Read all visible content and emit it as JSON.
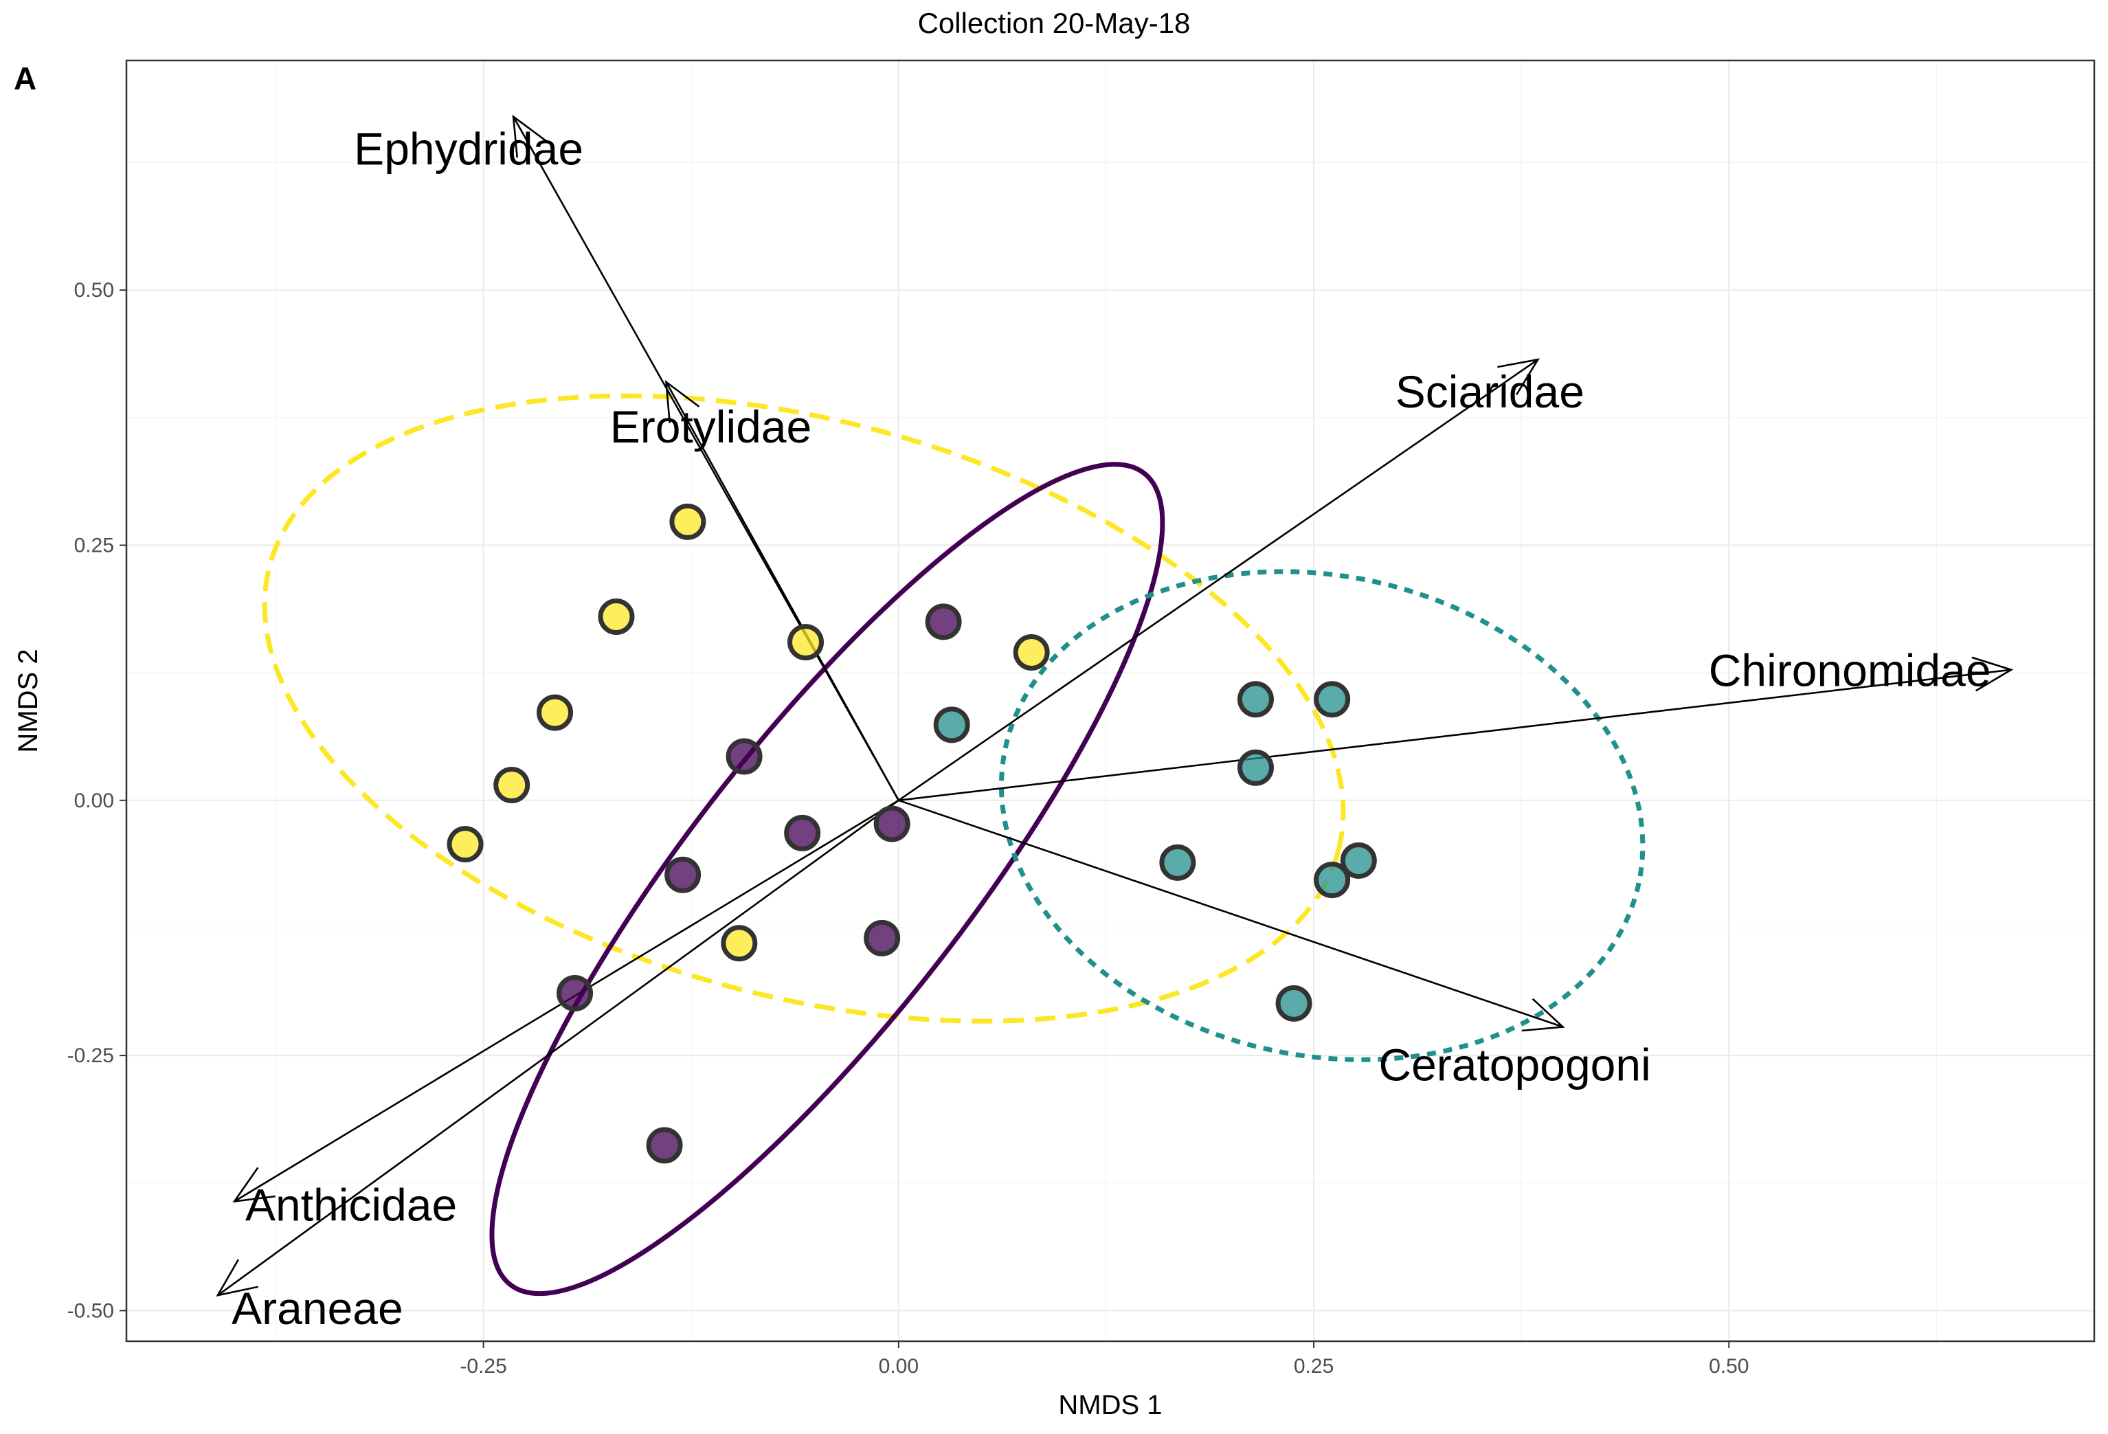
{
  "chart_data": {
    "type": "scatter",
    "title": "Collection 20-May-18",
    "panel_tag": "A",
    "xlabel": "NMDS 1",
    "ylabel": "NMDS 2",
    "xlim": [
      -0.465,
      0.72
    ],
    "ylim": [
      -0.53,
      0.725
    ],
    "xticks": [
      -0.25,
      0.0,
      0.25,
      0.5
    ],
    "xtick_labels": [
      "-0.25",
      "0.00",
      "0.25",
      "0.50"
    ],
    "yticks": [
      -0.5,
      -0.25,
      0.0,
      0.25,
      0.5
    ],
    "ytick_labels": [
      "-0.50",
      "-0.25",
      "0.00",
      "0.25",
      "0.50"
    ],
    "grid": true,
    "legend": "none",
    "groups": [
      {
        "color": "#fde725",
        "points": [
          [
            -0.127,
            0.273
          ],
          [
            -0.17,
            0.18
          ],
          [
            -0.207,
            0.086
          ],
          [
            -0.233,
            0.015
          ],
          [
            -0.261,
            -0.043
          ],
          [
            -0.056,
            0.155
          ],
          [
            0.08,
            0.145
          ],
          [
            -0.096,
            -0.14
          ]
        ],
        "ellipse": {
          "style": "dashed",
          "center": [
            -0.057,
            0.09
          ],
          "rx": 0.333,
          "ry": 0.282,
          "angle": -15
        }
      },
      {
        "color": "#440154",
        "points": [
          [
            0.027,
            0.175
          ],
          [
            -0.093,
            0.043
          ],
          [
            -0.058,
            -0.032
          ],
          [
            -0.004,
            -0.023
          ],
          [
            -0.13,
            -0.073
          ],
          [
            -0.195,
            -0.189
          ],
          [
            -0.01,
            -0.135
          ],
          [
            -0.141,
            -0.338
          ]
        ],
        "ellipse": {
          "style": "solid",
          "center": [
            -0.043,
            -0.077
          ],
          "rx": 0.31,
          "ry": 0.136,
          "angle": 52
        }
      },
      {
        "color": "#21908c",
        "points": [
          [
            0.032,
            0.074
          ],
          [
            0.215,
            0.099
          ],
          [
            0.261,
            0.099
          ],
          [
            0.215,
            0.032
          ],
          [
            0.168,
            -0.061
          ],
          [
            0.277,
            -0.059
          ],
          [
            0.261,
            -0.078
          ],
          [
            0.238,
            -0.199
          ]
        ],
        "ellipse": {
          "style": "dotted",
          "center": [
            0.255,
            -0.015
          ],
          "rx": 0.195,
          "ry": 0.235,
          "angle": -12
        }
      }
    ],
    "vectors": [
      {
        "label": "Ephydridae",
        "x": -0.232,
        "y": 0.67
      },
      {
        "label": "Erotylidae",
        "x": -0.14,
        "y": 0.41
      },
      {
        "label": "Sciaridae",
        "x": 0.385,
        "y": 0.432
      },
      {
        "label": "Chironomidae",
        "x": 0.67,
        "y": 0.128
      },
      {
        "label": "Ceratopogoni",
        "x": 0.4,
        "y": -0.222
      },
      {
        "label": "Anthicidae",
        "x": -0.4,
        "y": -0.393
      },
      {
        "label": "Araneae",
        "x": -0.41,
        "y": -0.485
      }
    ]
  }
}
